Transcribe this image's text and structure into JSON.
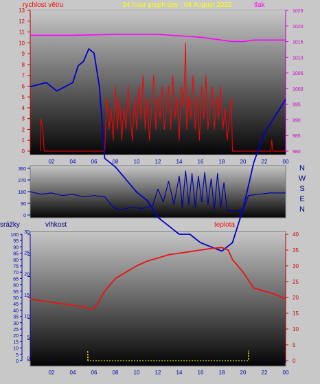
{
  "title": "24 hour graph day : 04 August 2022",
  "colors": {
    "background": "#c8c8c8",
    "title": "#ffff00",
    "wind": "#ff0000",
    "pressure": "#ff00ff",
    "direction": "#0000aa",
    "humidity": "#0000cc",
    "temperature": "#ee1111",
    "rain": "#dddd00",
    "labels_blue": "#000088"
  },
  "chart_data": [
    {
      "type": "line",
      "name": "wind-pressure",
      "series": [
        {
          "name": "rychlost větru",
          "axis": "left",
          "points": [
            [
              1.0,
              0
            ],
            [
              1.0,
              3
            ],
            [
              1.2,
              2
            ],
            [
              1.3,
              0
            ],
            [
              7.0,
              0
            ],
            [
              7.2,
              5
            ],
            [
              7.4,
              2
            ],
            [
              7.6,
              4
            ],
            [
              7.8,
              1
            ],
            [
              8.0,
              6
            ],
            [
              8.2,
              2
            ],
            [
              8.4,
              5
            ],
            [
              8.6,
              1
            ],
            [
              8.8,
              4
            ],
            [
              9.0,
              2
            ],
            [
              9.2,
              6
            ],
            [
              9.4,
              3
            ],
            [
              9.6,
              1
            ],
            [
              9.8,
              5
            ],
            [
              10.0,
              2
            ],
            [
              10.2,
              6
            ],
            [
              10.4,
              3
            ],
            [
              10.6,
              7
            ],
            [
              10.8,
              2
            ],
            [
              11.0,
              5
            ],
            [
              11.2,
              1
            ],
            [
              11.4,
              4
            ],
            [
              11.6,
              7
            ],
            [
              11.8,
              2
            ],
            [
              12.0,
              5
            ],
            [
              12.2,
              3
            ],
            [
              12.4,
              6
            ],
            [
              12.6,
              2
            ],
            [
              12.8,
              4
            ],
            [
              13.0,
              6
            ],
            [
              13.2,
              2
            ],
            [
              13.4,
              7
            ],
            [
              13.6,
              3
            ],
            [
              13.8,
              5
            ],
            [
              14.0,
              1
            ],
            [
              14.2,
              6
            ],
            [
              14.4,
              4
            ],
            [
              14.6,
              10
            ],
            [
              14.7,
              2
            ],
            [
              14.9,
              5
            ],
            [
              15.1,
              3
            ],
            [
              15.3,
              7
            ],
            [
              15.5,
              2
            ],
            [
              15.7,
              5
            ],
            [
              15.9,
              1
            ],
            [
              16.1,
              6
            ],
            [
              16.3,
              3
            ],
            [
              16.5,
              7
            ],
            [
              16.7,
              2
            ],
            [
              16.9,
              4
            ],
            [
              17.1,
              6
            ],
            [
              17.3,
              2
            ],
            [
              17.5,
              5
            ],
            [
              17.7,
              3
            ],
            [
              17.9,
              6
            ],
            [
              18.1,
              2
            ],
            [
              18.3,
              4
            ],
            [
              18.5,
              1
            ],
            [
              18.7,
              3
            ],
            [
              18.9,
              5
            ],
            [
              19.0,
              0
            ],
            [
              22.6,
              0
            ],
            [
              22.7,
              1
            ],
            [
              22.8,
              0
            ],
            [
              24,
              0
            ]
          ]
        },
        {
          "name": "tlak",
          "axis": "right",
          "points": [
            [
              0,
              1017
            ],
            [
              4,
              1017
            ],
            [
              8,
              1017.3
            ],
            [
              12,
              1017.3
            ],
            [
              16,
              1016.4
            ],
            [
              19,
              1015
            ],
            [
              20,
              1015
            ],
            [
              21,
              1015.5
            ],
            [
              24,
              1015.5
            ]
          ]
        }
      ],
      "x_ticks": [
        "02",
        "04",
        "06",
        "08",
        "10",
        "12",
        "14",
        "16",
        "18",
        "20",
        "22",
        "00"
      ],
      "ylabel_left": "rychlost větru",
      "ylabel_right": "tlak",
      "ylim_left": [
        0,
        13
      ],
      "ylim_right": [
        980,
        1025
      ],
      "yticks_left": [
        "0",
        "1",
        "2",
        "3",
        "4",
        "5",
        "6",
        "7",
        "8",
        "9",
        "10",
        "11",
        "12",
        "13"
      ],
      "yticks_right": [
        "980",
        "985",
        "990",
        "995",
        "1000",
        "1005",
        "1010",
        "1015",
        "1020",
        "1025"
      ]
    },
    {
      "type": "line",
      "name": "wind-direction",
      "series": [
        {
          "name": "direction",
          "points": [
            [
              0,
              180
            ],
            [
              1,
              160
            ],
            [
              2,
              170
            ],
            [
              3,
              150
            ],
            [
              4,
              160
            ],
            [
              5,
              140
            ],
            [
              6,
              150
            ],
            [
              7,
              140
            ],
            [
              7.8,
              60
            ],
            [
              8.5,
              40
            ],
            [
              9.5,
              60
            ],
            [
              10.5,
              50
            ],
            [
              11.5,
              70
            ],
            [
              12,
              200
            ],
            [
              12.5,
              100
            ],
            [
              13,
              260
            ],
            [
              13.5,
              80
            ],
            [
              14,
              300
            ],
            [
              14.3,
              60
            ],
            [
              14.6,
              340
            ],
            [
              14.9,
              80
            ],
            [
              15.2,
              320
            ],
            [
              15.5,
              60
            ],
            [
              15.8,
              300
            ],
            [
              16.1,
              100
            ],
            [
              16.4,
              330
            ],
            [
              16.7,
              80
            ],
            [
              17,
              280
            ],
            [
              17.3,
              40
            ],
            [
              17.6,
              320
            ],
            [
              17.9,
              60
            ],
            [
              18.2,
              250
            ],
            [
              18.5,
              40
            ],
            [
              19,
              30
            ],
            [
              20,
              40
            ],
            [
              20.5,
              150
            ],
            [
              21.5,
              160
            ],
            [
              22.5,
              170
            ],
            [
              23.5,
              170
            ],
            [
              24,
              170
            ]
          ]
        }
      ],
      "yticks": [
        "0",
        "90",
        "180",
        "270",
        "360"
      ],
      "compass": [
        "N",
        "W",
        "S",
        "E",
        "N"
      ],
      "ylim": [
        0,
        360
      ]
    },
    {
      "type": "line",
      "name": "humidity-temperature-rain",
      "series": [
        {
          "name": "vlhkost",
          "axis": "inner-left",
          "points": [
            [
              0,
              65
            ],
            [
              1.5,
              66
            ],
            [
              2.5,
              64
            ],
            [
              4,
              66
            ],
            [
              4.5,
              70
            ],
            [
              5,
              71
            ],
            [
              5.5,
              74
            ],
            [
              6,
              73
            ],
            [
              6.5,
              65
            ],
            [
              7,
              48
            ],
            [
              8,
              46
            ],
            [
              9,
              43
            ],
            [
              10,
              40
            ],
            [
              11,
              38
            ],
            [
              12,
              34
            ],
            [
              13,
              32
            ],
            [
              14,
              30
            ],
            [
              15,
              30
            ],
            [
              16,
              28
            ],
            [
              17,
              27
            ],
            [
              18,
              26
            ],
            [
              19,
              28
            ],
            [
              20,
              36
            ],
            [
              21,
              47
            ],
            [
              22,
              54
            ],
            [
              23,
              58
            ],
            [
              24,
              62
            ]
          ]
        },
        {
          "name": "teplota",
          "axis": "right",
          "points": [
            [
              0,
              19.5
            ],
            [
              1,
              19
            ],
            [
              2,
              18.5
            ],
            [
              3,
              18
            ],
            [
              4,
              17.5
            ],
            [
              5,
              17
            ],
            [
              5.5,
              16.5
            ],
            [
              6,
              16.5
            ],
            [
              6.5,
              19
            ],
            [
              7,
              22
            ],
            [
              8,
              26
            ],
            [
              9,
              28
            ],
            [
              10,
              30
            ],
            [
              11,
              31.5
            ],
            [
              12,
              32.5
            ],
            [
              13,
              33.5
            ],
            [
              14,
              34
            ],
            [
              15,
              34.5
            ],
            [
              16,
              35
            ],
            [
              17,
              35.5
            ],
            [
              18,
              35.8
            ],
            [
              18.6,
              35
            ],
            [
              19,
              32
            ],
            [
              20,
              28
            ],
            [
              21,
              23
            ],
            [
              22,
              22
            ],
            [
              23,
              21
            ],
            [
              24,
              19.5
            ]
          ]
        },
        {
          "name": "srážky",
          "axis": "outer-left",
          "points": [
            [
              5.4,
              0
            ],
            [
              5.4,
              8
            ],
            [
              5.45,
              0
            ],
            [
              20.5,
              0
            ],
            [
              20.5,
              8
            ],
            [
              20.55,
              0
            ]
          ]
        }
      ],
      "x_ticks": [
        "02",
        "04",
        "06",
        "08",
        "10",
        "12",
        "14",
        "16",
        "18",
        "20",
        "22",
        "00"
      ],
      "labels": {
        "rain": "srážky",
        "humidity": "vlhkost",
        "temperature": "teplota"
      },
      "ylim_outer_left": [
        0,
        100
      ],
      "ylim_inner_left": [
        0,
        30
      ],
      "ylim_right": [
        0,
        40
      ],
      "yticks_outer_left": [
        "0",
        "5",
        "10",
        "15",
        "20",
        "25",
        "30",
        "35",
        "40",
        "45",
        "50",
        "55",
        "60",
        "65",
        "70",
        "75",
        "80",
        "85",
        "90",
        "95",
        "100"
      ],
      "yticks_inner_left": [
        "0",
        "5",
        "10",
        "15",
        "20",
        "25",
        "30"
      ],
      "yticks_right": [
        "0",
        "5",
        "10",
        "15",
        "20",
        "25",
        "30",
        "35",
        "40"
      ]
    }
  ]
}
